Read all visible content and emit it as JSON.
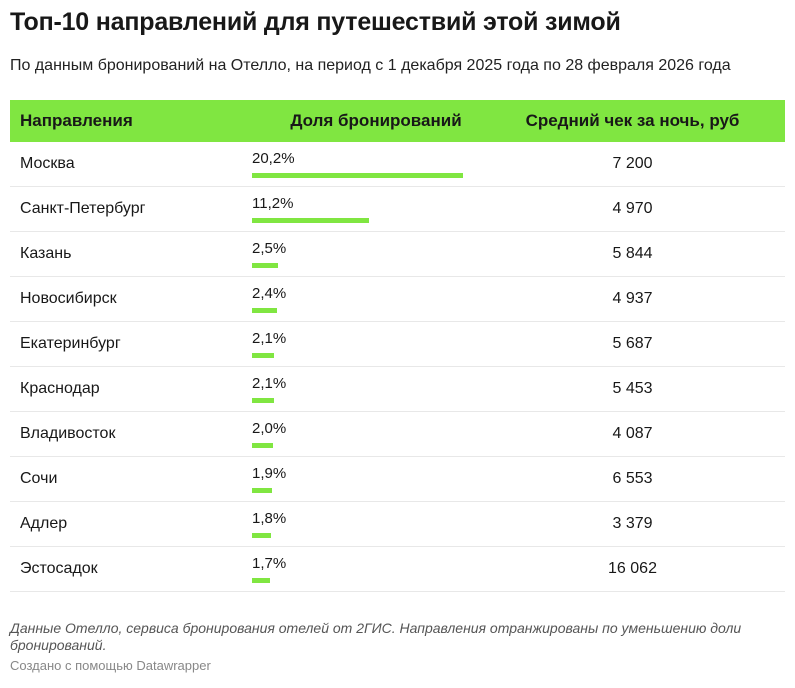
{
  "title": "Топ-10 направлений для путешествий этой зимой",
  "subtitle": "По данным бронирований на Отелло, на период с 1 декабря 2025 года по 28 февраля 2026 года",
  "chart_data": {
    "type": "table",
    "columns": [
      "Направления",
      "Доля бронирований",
      "Средний чек за ночь, руб"
    ],
    "rows": [
      {
        "city": "Москва",
        "share": 20.2,
        "share_label": "20,2%",
        "avg": "7 200"
      },
      {
        "city": "Санкт-Петербург",
        "share": 11.2,
        "share_label": "11,2%",
        "avg": "4 970"
      },
      {
        "city": "Казань",
        "share": 2.5,
        "share_label": "2,5%",
        "avg": "5 844"
      },
      {
        "city": "Новосибирск",
        "share": 2.4,
        "share_label": "2,4%",
        "avg": "4 937"
      },
      {
        "city": "Екатеринбург",
        "share": 2.1,
        "share_label": "2,1%",
        "avg": "5 687"
      },
      {
        "city": "Краснодар",
        "share": 2.1,
        "share_label": "2,1%",
        "avg": "5 453"
      },
      {
        "city": "Владивосток",
        "share": 2.0,
        "share_label": "2,0%",
        "avg": "4 087"
      },
      {
        "city": "Сочи",
        "share": 1.9,
        "share_label": "1,9%",
        "avg": "6 553"
      },
      {
        "city": "Адлер",
        "share": 1.8,
        "share_label": "1,8%",
        "avg": "3 379"
      },
      {
        "city": "Эстосадок",
        "share": 1.7,
        "share_label": "1,7%",
        "avg": "16 062"
      }
    ],
    "bar_max": 20.2,
    "accent": "#80e641"
  },
  "notes": "Данные Отелло, сервиса бронирования отелей от 2ГИС. Направления отранжированы по уменьшению доли бронирований.",
  "credit": "Создано с помощью Datawrapper"
}
